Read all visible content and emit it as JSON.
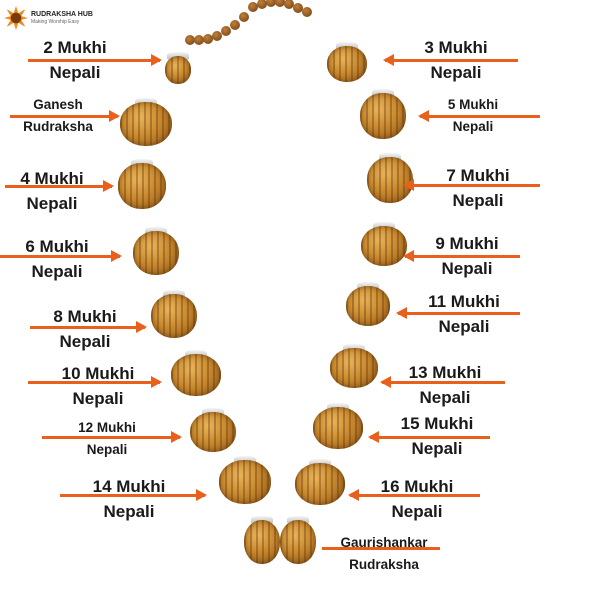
{
  "logo": {
    "brand": "RUDRAKSHA HUB",
    "tagline": "Making Worship Easy"
  },
  "colors": {
    "arrow": "#e8601c",
    "text": "#1a1a1a",
    "background": "#ffffff"
  },
  "labels": {
    "left": [
      {
        "line1": "2 Mukhi",
        "line2": "Nepali"
      },
      {
        "line1": "Ganesh",
        "line2": "Rudraksha"
      },
      {
        "line1": "4 Mukhi",
        "line2": "Nepali"
      },
      {
        "line1": "6 Mukhi",
        "line2": "Nepali"
      },
      {
        "line1": "8 Mukhi",
        "line2": "Nepali"
      },
      {
        "line1": "10 Mukhi",
        "line2": "Nepali"
      },
      {
        "line1": "12 Mukhi",
        "line2": "Nepali"
      },
      {
        "line1": "14 Mukhi",
        "line2": "Nepali"
      }
    ],
    "right": [
      {
        "line1": "3 Mukhi",
        "line2": "Nepali"
      },
      {
        "line1": "5 Mukhi",
        "line2": "Nepali"
      },
      {
        "line1": "7 Mukhi",
        "line2": "Nepali"
      },
      {
        "line1": "9 Mukhi",
        "line2": "Nepali"
      },
      {
        "line1": "11 Mukhi",
        "line2": "Nepali"
      },
      {
        "line1": "13 Mukhi",
        "line2": "Nepali"
      },
      {
        "line1": "15 Mukhi",
        "line2": "Nepali"
      },
      {
        "line1": "16 Mukhi",
        "line2": "Nepali"
      },
      {
        "line1": "Gaurishankar",
        "line2": "Rudraksha"
      }
    ]
  }
}
